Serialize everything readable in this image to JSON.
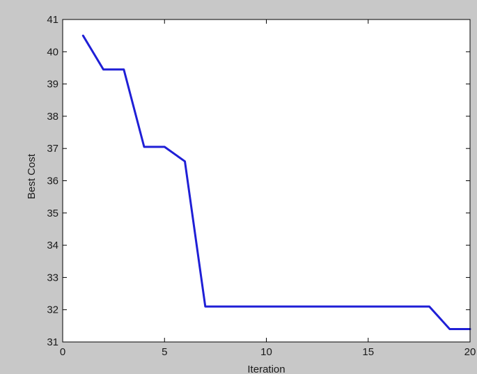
{
  "chart_data": {
    "type": "line",
    "title": "",
    "xlabel": "Iteration",
    "ylabel": "Best Cost",
    "xlim": [
      0,
      20
    ],
    "ylim": [
      31,
      41
    ],
    "xticks": [
      0,
      5,
      10,
      15,
      20
    ],
    "yticks": [
      31,
      32,
      33,
      34,
      35,
      36,
      37,
      38,
      39,
      40,
      41
    ],
    "grid": false,
    "legend": "none",
    "series": [
      {
        "color": "#1f1fd6",
        "x": [
          1,
          2,
          3,
          4,
          5,
          6,
          7,
          8,
          9,
          10,
          11,
          12,
          13,
          14,
          15,
          16,
          17,
          18,
          19,
          20
        ],
        "values": [
          40.5,
          39.45,
          39.45,
          37.05,
          37.05,
          36.6,
          32.1,
          32.1,
          32.1,
          32.1,
          32.1,
          32.1,
          32.1,
          32.1,
          32.1,
          32.1,
          32.1,
          32.1,
          31.4,
          31.4
        ]
      }
    ]
  }
}
